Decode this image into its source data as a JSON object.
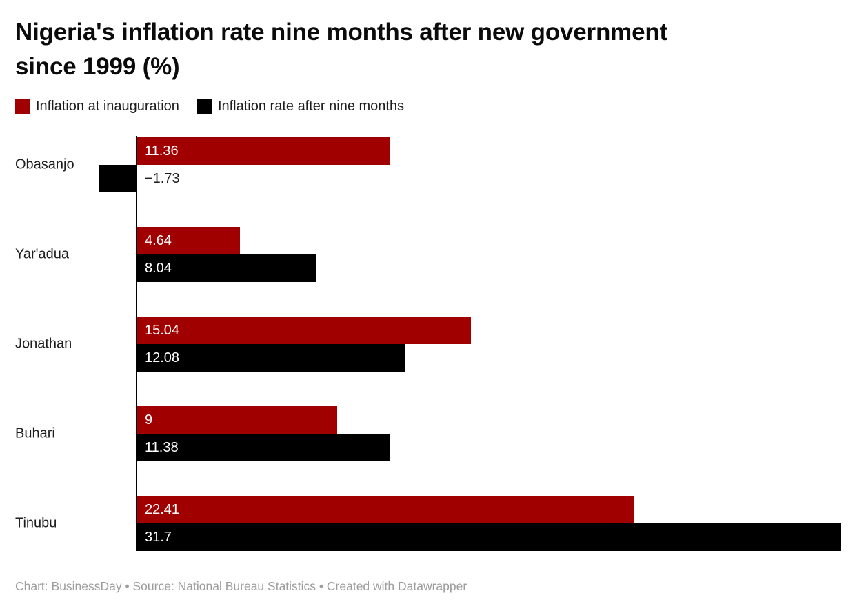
{
  "page": {
    "title_lines": [
      "Nigeria's inflation rate nine months after new government",
      "since 1999 (%)"
    ],
    "footer": "Chart: BusinessDay • Source: National Bureau Statistics • Created with Datawrapper"
  },
  "colors": {
    "inauguration_red": "#a00000",
    "nine_months_black": "#000000",
    "text_dark": "#1d1d1d",
    "footer_gray": "#9c9c9c"
  },
  "legend": [
    {
      "label": "Inflation at inauguration",
      "color": "#a00000"
    },
    {
      "label": "Inflation rate after nine months",
      "color": "#000000"
    }
  ],
  "chart_data": {
    "type": "bar",
    "orientation": "horizontal",
    "title": "Nigeria's inflation rate nine months after new government since 1999 (%)",
    "categories": [
      "Obasanjo",
      "Yar'adua",
      "Jonathan",
      "Buhari",
      "Tinubu"
    ],
    "series": [
      {
        "name": "Inflation at inauguration",
        "color": "#a00000",
        "values": [
          11.36,
          4.64,
          15.04,
          9,
          22.41
        ],
        "labels": [
          "11.36",
          "4.64",
          "15.04",
          "9",
          "22.41"
        ]
      },
      {
        "name": "Inflation rate after nine months",
        "color": "#000000",
        "values": [
          -1.73,
          8.04,
          12.08,
          11.38,
          31.7
        ],
        "labels": [
          "−1.73",
          "8.04",
          "12.08",
          "11.38",
          "31.7"
        ]
      }
    ],
    "x_range": [
      -1.73,
      31.7
    ],
    "value_unit": "%",
    "grid": false,
    "legend_position": "top",
    "value_labels": "inside-start, outside for negative values"
  }
}
